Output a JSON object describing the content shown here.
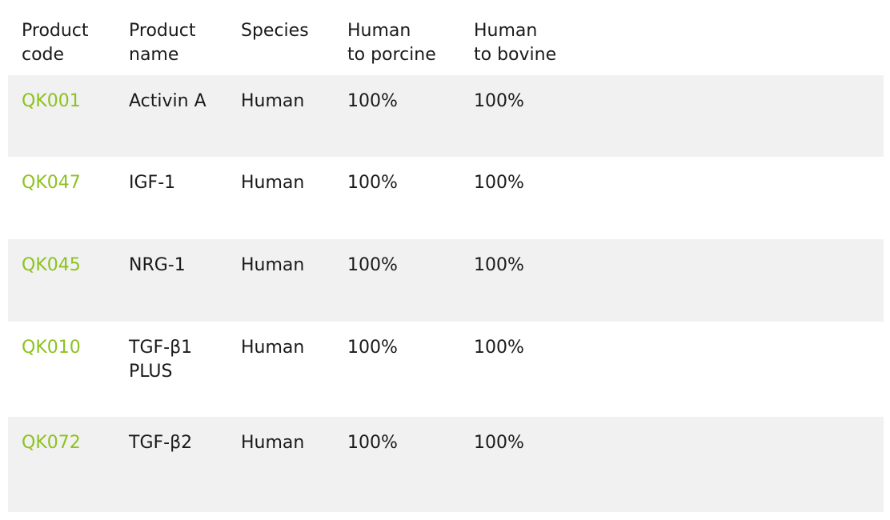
{
  "table": {
    "headers": [
      [
        "Product",
        "code"
      ],
      [
        "Product",
        "name"
      ],
      [
        "Species"
      ],
      [
        "Human",
        "to porcine"
      ],
      [
        "Human",
        "to bovine"
      ]
    ],
    "rows": [
      {
        "code": "QK001",
        "name": [
          "Activin A"
        ],
        "species": "Human",
        "porcine": "100%",
        "bovine": "100%"
      },
      {
        "code": "QK047",
        "name": [
          "IGF-1"
        ],
        "species": "Human",
        "porcine": "100%",
        "bovine": "100%"
      },
      {
        "code": "QK045",
        "name": [
          "NRG-1"
        ],
        "species": "Human",
        "porcine": "100%",
        "bovine": "100%"
      },
      {
        "code": "QK010",
        "name": [
          "TGF-β1",
          "PLUS"
        ],
        "species": "Human",
        "porcine": "100%",
        "bovine": "100%"
      },
      {
        "code": "QK072",
        "name": [
          "TGF-β2"
        ],
        "species": "Human",
        "porcine": "100%",
        "bovine": "100%"
      }
    ]
  },
  "colors": {
    "code_link": "#8dc21f",
    "row_shade": "#f0f1f0",
    "text": "#1a1a1a"
  }
}
